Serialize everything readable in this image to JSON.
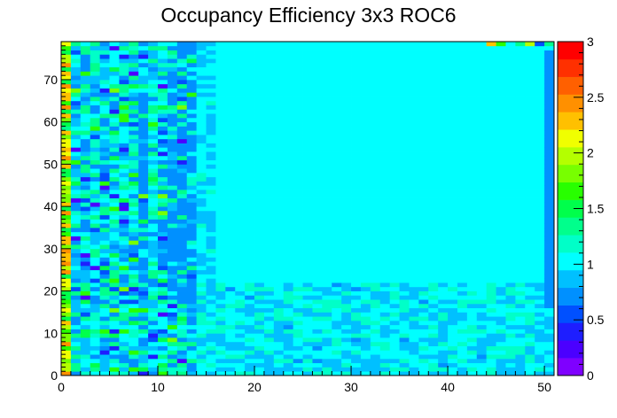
{
  "chart_data": {
    "type": "heatmap",
    "title": "Occupancy Efficiency 3x3 ROC6",
    "xlabel": "",
    "ylabel": "",
    "xlim": [
      0,
      51
    ],
    "ylim": [
      0,
      79
    ],
    "x_ticks": [
      0,
      10,
      20,
      30,
      40,
      50
    ],
    "y_ticks": [
      0,
      10,
      20,
      30,
      40,
      50,
      60,
      70
    ],
    "z_range": [
      0,
      3
    ],
    "z_ticks": [
      0,
      0.5,
      1,
      1.5,
      2,
      2.5,
      3
    ],
    "n_cols": 52,
    "n_rows": 80,
    "dominant_value": 1.0,
    "palette": [
      "#7f00ff",
      "#4b00ff",
      "#1e1eff",
      "#0050ff",
      "#0090ff",
      "#00c0ff",
      "#00ffff",
      "#00ffc8",
      "#00ff8c",
      "#00ff4b",
      "#28ff00",
      "#78ff00",
      "#b4ff00",
      "#f0ff00",
      "#ffc000",
      "#ff9000",
      "#ff6000",
      "#ff3000",
      "#ff0000"
    ],
    "grid": false,
    "legend": "colorbar-right"
  }
}
